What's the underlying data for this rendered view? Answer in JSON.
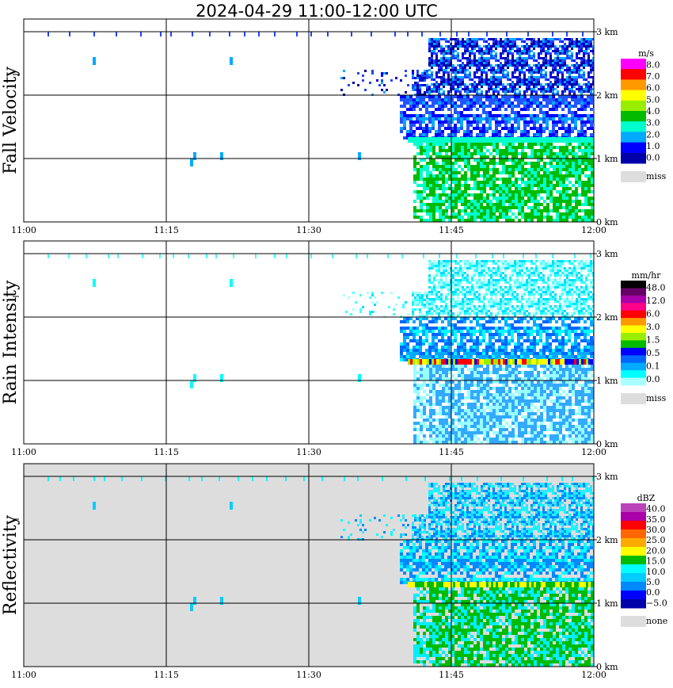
{
  "chart_data": {
    "type": "heatmap",
    "title": "2024-04-29   11:00-12:00 UTC",
    "x_ticks": [
      "11:00",
      "11:15",
      "11:30",
      "11:45",
      "12:00"
    ],
    "y_ticks": [
      "0 km",
      "1 km",
      "2 km",
      "3 km"
    ],
    "ylim_km": [
      0,
      3.2
    ],
    "panels": [
      {
        "name": "Fall Velocity",
        "ylabel": "Fall Velocity",
        "unit": "m/s",
        "background": "#ffffff",
        "levels": [
          "8.0",
          "7.0",
          "6.0",
          "5.0",
          "4.0",
          "3.0",
          "2.0",
          "1.0",
          "0.0"
        ],
        "colors": [
          "#ff00ff",
          "#ff0000",
          "#ff9900",
          "#ffff00",
          "#99ee00",
          "#00bb00",
          "#00ffcc",
          "#00aaff",
          "#0000ff",
          "#0000aa"
        ],
        "missing_label": "miss",
        "missing_color": "#dddddd",
        "below_color": "#00bb00",
        "layer_color": "#00ffcc",
        "upper_colors": [
          "#0000ff",
          "#2244ff",
          "#0000aa",
          "#00aaff"
        ],
        "mid_colors": [
          "#00aaff",
          "#2255ff",
          "#0000ff"
        ],
        "band_colors": [
          "#00ffcc"
        ]
      },
      {
        "name": "Rain Intensity",
        "ylabel": "Rain Intensity",
        "unit": "mm/hr",
        "background": "#ffffff",
        "levels": [
          "48.0",
          "12.0",
          "6.0",
          "3.0",
          "1.5",
          "0.5",
          "0.1",
          "0.0"
        ],
        "colors": [
          "#000000",
          "#660066",
          "#aa00aa",
          "#ff0088",
          "#ff0000",
          "#ff9900",
          "#ffff00",
          "#99ee00",
          "#00bb00",
          "#0000ff",
          "#0066ff",
          "#00aaff",
          "#00ffff",
          "#aaffff"
        ],
        "missing_label": "miss",
        "missing_color": "#dddddd",
        "below_color": "#33aaff",
        "layer_color": "#99ffff",
        "upper_colors": [
          "#00ffff",
          "#44ffff",
          "#aaffff",
          "#00ddff"
        ],
        "mid_colors": [
          "#00ffff",
          "#00aaff",
          "#0066ff"
        ],
        "band_colors": [
          "#0000ff",
          "#99ee00",
          "#ffff00",
          "#ff0000"
        ]
      },
      {
        "name": "Reflectivity",
        "ylabel": "Reflectivity",
        "unit": "dBZ",
        "background": "#dddddd",
        "levels": [
          "40.0",
          "35.0",
          "30.0",
          "25.0",
          "20.0",
          "15.0",
          "10.0",
          "5.0",
          "0.0",
          "−5.0"
        ],
        "colors": [
          "#bb44bb",
          "#aa00aa",
          "#ff0000",
          "#ff6600",
          "#ffaa00",
          "#ffff00",
          "#00bb00",
          "#00ffff",
          "#00ccff",
          "#0088ff",
          "#0000ff",
          "#0000aa"
        ],
        "missing_label": "none",
        "missing_color": "#dddddd",
        "below_color": "#00bb00",
        "layer_color": "#00eeff",
        "upper_colors": [
          "#00ccff",
          "#00ffff",
          "#0088ff",
          "#44ddff"
        ],
        "mid_colors": [
          "#00ccff",
          "#0088ff",
          "#00ffff"
        ],
        "band_colors": [
          "#00bb00",
          "#ffff00"
        ]
      }
    ]
  }
}
